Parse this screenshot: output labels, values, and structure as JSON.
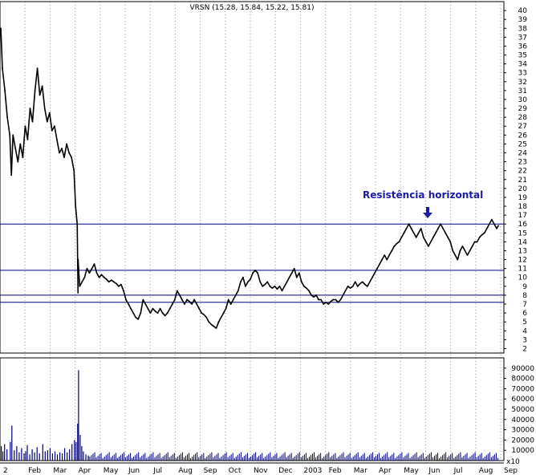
{
  "chart_data": {
    "type": "line",
    "title": "VRSN (15.28, 15.84, 15.22, 15.81)",
    "xlabel": "",
    "ylabel": "",
    "month_labels": [
      "2",
      "Feb",
      "Mar",
      "Apr",
      "May",
      "Jun",
      "Jul",
      "Aug",
      "Sep",
      "Oct",
      "Nov",
      "Dec",
      "2003",
      "Feb",
      "Mar",
      "Apr",
      "May",
      "Jun",
      "Jul",
      "Aug",
      "Sep"
    ],
    "price_axis": {
      "ylim": [
        1.5,
        41
      ],
      "ticks": [
        2,
        3,
        4,
        5,
        6,
        7,
        8,
        9,
        10,
        11,
        12,
        13,
        14,
        15,
        16,
        17,
        18,
        19,
        20,
        21,
        22,
        23,
        24,
        25,
        26,
        27,
        28,
        29,
        30,
        31,
        32,
        33,
        34,
        35,
        36,
        37,
        38,
        39,
        40
      ]
    },
    "volume_axis": {
      "ylim": [
        0,
        100000
      ],
      "ticks": [
        10000,
        20000,
        30000,
        40000,
        50000,
        60000,
        70000,
        80000,
        90000
      ],
      "tick_labels": [
        "10000",
        "20000",
        "30000",
        "40000",
        "50000",
        "60000",
        "70000",
        "80000",
        "90000"
      ],
      "unit_label": "x10"
    },
    "grid": "vertical-dotted",
    "series": [
      {
        "values": [
          [
            1,
            38.0
          ],
          [
            3,
            33.5
          ],
          [
            6,
            31.0
          ],
          [
            9,
            28.0
          ],
          [
            12,
            26.0
          ],
          [
            14,
            21.5
          ],
          [
            16,
            26.0
          ],
          [
            19,
            24.5
          ],
          [
            22,
            23.0
          ],
          [
            25,
            25.0
          ],
          [
            28,
            23.5
          ],
          [
            31,
            27.0
          ],
          [
            34,
            25.5
          ],
          [
            37,
            29.0
          ],
          [
            40,
            27.5
          ],
          [
            43,
            31.0
          ],
          [
            46,
            33.5
          ],
          [
            49,
            30.5
          ],
          [
            52,
            31.5
          ],
          [
            55,
            29.0
          ],
          [
            58,
            27.5
          ],
          [
            61,
            28.5
          ],
          [
            64,
            26.5
          ],
          [
            67,
            27.0
          ],
          [
            70,
            25.5
          ],
          [
            73,
            24.0
          ],
          [
            76,
            24.5
          ],
          [
            79,
            23.5
          ],
          [
            82,
            25.0
          ],
          [
            85,
            24.0
          ],
          [
            88,
            23.5
          ],
          [
            91,
            22.0
          ],
          [
            93,
            18.0
          ],
          [
            95,
            16.0
          ],
          [
            96,
            12.0
          ],
          [
            98,
            9.0
          ],
          [
            101,
            9.5
          ],
          [
            104,
            10.0
          ],
          [
            107,
            11.0
          ],
          [
            110,
            10.5
          ],
          [
            113,
            11.0
          ],
          [
            116,
            11.5
          ],
          [
            119,
            10.5
          ],
          [
            122,
            10.0
          ],
          [
            125,
            10.3
          ],
          [
            128,
            10.0
          ],
          [
            131,
            9.8
          ],
          [
            134,
            9.5
          ],
          [
            137,
            9.7
          ],
          [
            140,
            9.5
          ],
          [
            143,
            9.3
          ],
          [
            146,
            9.0
          ],
          [
            149,
            9.2
          ],
          [
            152,
            8.5
          ],
          [
            155,
            7.5
          ],
          [
            158,
            7.0
          ],
          [
            161,
            6.5
          ],
          [
            164,
            6.0
          ],
          [
            167,
            5.5
          ],
          [
            170,
            5.3
          ],
          [
            173,
            6.0
          ],
          [
            176,
            7.5
          ],
          [
            179,
            7.0
          ],
          [
            182,
            6.5
          ],
          [
            185,
            6.0
          ],
          [
            188,
            6.5
          ],
          [
            191,
            6.2
          ],
          [
            194,
            6.0
          ],
          [
            197,
            6.5
          ],
          [
            200,
            6.0
          ],
          [
            203,
            5.7
          ],
          [
            206,
            6.0
          ],
          [
            209,
            6.5
          ],
          [
            212,
            7.0
          ],
          [
            215,
            7.5
          ],
          [
            218,
            8.5
          ],
          [
            221,
            8.0
          ],
          [
            224,
            7.5
          ],
          [
            227,
            7.0
          ],
          [
            230,
            7.5
          ],
          [
            233,
            7.3
          ],
          [
            236,
            7.0
          ],
          [
            239,
            7.5
          ],
          [
            242,
            7.0
          ],
          [
            245,
            6.5
          ],
          [
            248,
            6.0
          ],
          [
            251,
            5.8
          ],
          [
            254,
            5.5
          ],
          [
            257,
            5.0
          ],
          [
            260,
            4.7
          ],
          [
            263,
            4.5
          ],
          [
            266,
            4.3
          ],
          [
            269,
            5.0
          ],
          [
            272,
            5.5
          ],
          [
            275,
            6.0
          ],
          [
            278,
            6.5
          ],
          [
            281,
            7.5
          ],
          [
            284,
            7.0
          ],
          [
            287,
            7.5
          ],
          [
            290,
            8.0
          ],
          [
            293,
            8.5
          ],
          [
            296,
            9.5
          ],
          [
            299,
            10.0
          ],
          [
            302,
            9.0
          ],
          [
            305,
            9.5
          ],
          [
            308,
            9.8
          ],
          [
            311,
            10.5
          ],
          [
            314,
            10.8
          ],
          [
            317,
            10.5
          ],
          [
            320,
            9.5
          ],
          [
            323,
            9.0
          ],
          [
            326,
            9.2
          ],
          [
            329,
            9.5
          ],
          [
            332,
            9.0
          ],
          [
            335,
            8.8
          ],
          [
            338,
            9.0
          ],
          [
            341,
            8.7
          ],
          [
            344,
            9.0
          ],
          [
            347,
            8.5
          ],
          [
            350,
            9.0
          ],
          [
            353,
            9.5
          ],
          [
            356,
            10.0
          ],
          [
            359,
            10.5
          ],
          [
            362,
            11.0
          ],
          [
            365,
            10.0
          ],
          [
            368,
            10.5
          ],
          [
            371,
            9.5
          ],
          [
            374,
            9.0
          ],
          [
            377,
            8.8
          ],
          [
            380,
            8.5
          ],
          [
            383,
            8.0
          ],
          [
            386,
            7.8
          ],
          [
            389,
            8.0
          ],
          [
            392,
            7.5
          ],
          [
            395,
            7.5
          ],
          [
            398,
            7.0
          ],
          [
            401,
            7.2
          ],
          [
            404,
            7.0
          ],
          [
            407,
            7.3
          ],
          [
            410,
            7.5
          ],
          [
            413,
            7.5
          ],
          [
            416,
            7.2
          ],
          [
            419,
            7.5
          ],
          [
            422,
            8.0
          ],
          [
            425,
            8.5
          ],
          [
            428,
            9.0
          ],
          [
            431,
            8.8
          ],
          [
            434,
            9.0
          ],
          [
            437,
            9.5
          ],
          [
            440,
            9.0
          ],
          [
            443,
            9.3
          ],
          [
            446,
            9.5
          ],
          [
            449,
            9.2
          ],
          [
            452,
            9.0
          ],
          [
            455,
            9.5
          ],
          [
            458,
            10.0
          ],
          [
            461,
            10.5
          ],
          [
            464,
            11.0
          ],
          [
            467,
            11.5
          ],
          [
            470,
            12.0
          ],
          [
            473,
            12.5
          ],
          [
            476,
            12.0
          ],
          [
            479,
            12.5
          ],
          [
            482,
            13.0
          ],
          [
            485,
            13.5
          ],
          [
            488,
            13.8
          ],
          [
            491,
            14.0
          ],
          [
            494,
            14.5
          ],
          [
            497,
            15.0
          ],
          [
            500,
            15.5
          ],
          [
            503,
            16.0
          ],
          [
            506,
            15.5
          ],
          [
            509,
            15.0
          ],
          [
            512,
            14.5
          ],
          [
            515,
            15.0
          ],
          [
            518,
            15.5
          ],
          [
            521,
            14.5
          ],
          [
            524,
            14.0
          ],
          [
            527,
            13.5
          ],
          [
            530,
            14.0
          ],
          [
            533,
            14.5
          ],
          [
            536,
            15.0
          ],
          [
            539,
            15.5
          ],
          [
            542,
            16.0
          ],
          [
            545,
            15.5
          ],
          [
            548,
            15.0
          ],
          [
            551,
            14.5
          ],
          [
            554,
            14.0
          ],
          [
            557,
            13.0
          ],
          [
            560,
            12.5
          ],
          [
            563,
            12.0
          ],
          [
            566,
            13.0
          ],
          [
            569,
            13.5
          ],
          [
            572,
            13.0
          ],
          [
            575,
            12.5
          ],
          [
            578,
            13.0
          ],
          [
            581,
            13.5
          ],
          [
            584,
            14.0
          ],
          [
            587,
            14.0
          ],
          [
            590,
            14.5
          ],
          [
            593,
            14.8
          ],
          [
            596,
            15.0
          ],
          [
            599,
            15.5
          ],
          [
            602,
            16.0
          ],
          [
            605,
            16.5
          ],
          [
            608,
            16.0
          ],
          [
            611,
            15.5
          ],
          [
            613,
            15.81
          ]
        ]
      }
    ],
    "horizontal_lines": [
      16.0,
      10.8,
      8.0,
      7.2
    ],
    "annotations": [
      {
        "text": "Resistência horizontal",
        "points_to": 16.0
      }
    ],
    "volume": {
      "values": [
        [
          1,
          14000
        ],
        [
          3,
          9000
        ],
        [
          5,
          16000
        ],
        [
          8,
          11000
        ],
        [
          12,
          18000
        ],
        [
          14,
          34000
        ],
        [
          17,
          10000
        ],
        [
          20,
          14000
        ],
        [
          23,
          8000
        ],
        [
          26,
          12000
        ],
        [
          29,
          7000
        ],
        [
          31,
          9000
        ],
        [
          33,
          15000
        ],
        [
          36,
          6000
        ],
        [
          39,
          11000
        ],
        [
          42,
          8000
        ],
        [
          45,
          13000
        ],
        [
          48,
          7000
        ],
        [
          52,
          16000
        ],
        [
          55,
          9000
        ],
        [
          58,
          10000
        ],
        [
          61,
          12000
        ],
        [
          64,
          7000
        ],
        [
          67,
          9000
        ],
        [
          70,
          6000
        ],
        [
          73,
          8000
        ],
        [
          76,
          7000
        ],
        [
          79,
          12000
        ],
        [
          82,
          8000
        ],
        [
          85,
          11000
        ],
        [
          88,
          16000
        ],
        [
          91,
          20000
        ],
        [
          93,
          18000
        ],
        [
          95,
          36000
        ],
        [
          96,
          88000
        ],
        [
          98,
          25000
        ],
        [
          100,
          14000
        ],
        [
          102,
          9000
        ],
        [
          105,
          6000
        ],
        [
          108,
          5000
        ]
      ]
    }
  }
}
